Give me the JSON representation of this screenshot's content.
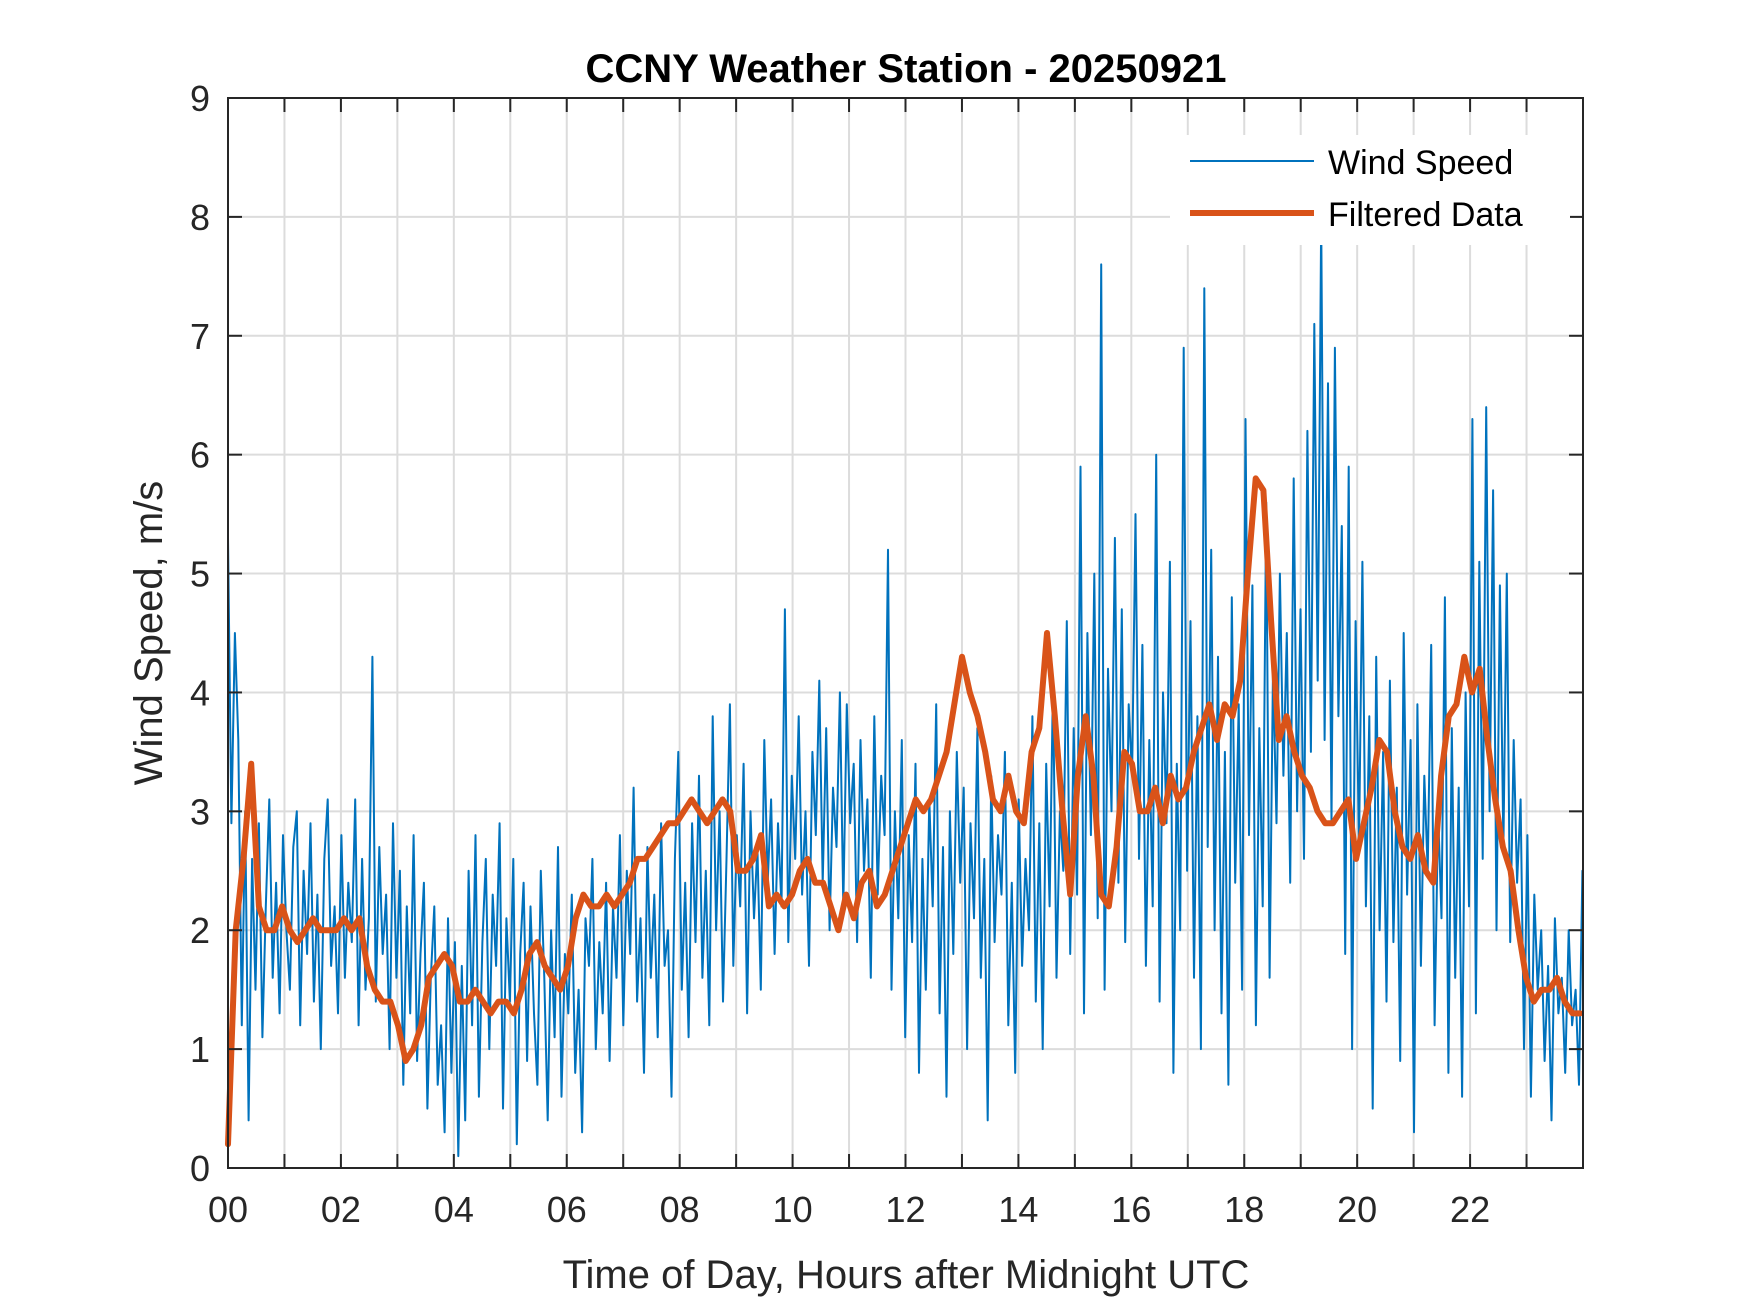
{
  "chart_data": {
    "type": "line",
    "title": "CCNY Weather Station - 20250921",
    "xlabel": "Time of Day, Hours after Midnight UTC",
    "ylabel": "Wind Speed, m/s",
    "xlim": [
      0,
      24
    ],
    "ylim": [
      0,
      9
    ],
    "xticks": [
      0,
      2,
      4,
      6,
      8,
      10,
      12,
      14,
      16,
      18,
      20,
      22
    ],
    "xtick_labels": [
      "00",
      "02",
      "04",
      "06",
      "08",
      "10",
      "12",
      "14",
      "16",
      "18",
      "20",
      "22"
    ],
    "yticks": [
      0,
      1,
      2,
      3,
      4,
      5,
      6,
      7,
      8,
      9
    ],
    "ytick_labels": [
      "0",
      "1",
      "2",
      "3",
      "4",
      "5",
      "6",
      "7",
      "8",
      "9"
    ],
    "minor_xgrid_step_hours": 1,
    "grid": true,
    "legend": {
      "location": "top-right",
      "entries": [
        "Wind Speed",
        "Filtered Data"
      ]
    },
    "series": [
      {
        "name": "Wind Speed",
        "color": "#0072BD",
        "x_step_hours": 0.05,
        "x_start": 0,
        "values": [
          5.3,
          2.9,
          4.5,
          3.6,
          1.2,
          3.0,
          0.4,
          2.6,
          1.5,
          2.9,
          1.1,
          2.2,
          3.1,
          1.6,
          2.4,
          1.3,
          2.8,
          2.0,
          1.5,
          2.7,
          3.0,
          1.2,
          2.5,
          1.8,
          2.9,
          1.4,
          2.3,
          1.0,
          2.6,
          3.1,
          1.7,
          2.2,
          1.3,
          2.8,
          1.6,
          2.4,
          1.9,
          3.1,
          1.2,
          2.6,
          1.5,
          2.1,
          4.3,
          1.4,
          2.7,
          1.8,
          2.3,
          1.0,
          2.9,
          1.6,
          2.5,
          0.7,
          2.2,
          1.3,
          2.8,
          0.9,
          1.8,
          2.4,
          0.5,
          1.6,
          2.2,
          0.7,
          1.2,
          0.3,
          2.1,
          0.8,
          1.9,
          0.1,
          1.7,
          0.4,
          2.5,
          1.2,
          2.8,
          0.6,
          1.9,
          2.6,
          1.0,
          2.3,
          1.7,
          2.9,
          0.5,
          2.1,
          1.4,
          2.6,
          0.2,
          1.8,
          2.4,
          0.9,
          2.2,
          1.3,
          0.7,
          2.5,
          1.6,
          0.4,
          2.0,
          1.1,
          2.7,
          0.6,
          1.8,
          1.3,
          2.3,
          0.8,
          1.5,
          0.3,
          2.1,
          1.7,
          2.6,
          1.0,
          1.9,
          1.3,
          2.4,
          0.9,
          2.2,
          1.6,
          2.8,
          1.2,
          2.5,
          1.8,
          3.2,
          1.4,
          2.1,
          0.8,
          2.7,
          1.6,
          2.3,
          1.1,
          2.9,
          1.7,
          2.0,
          0.6,
          2.6,
          3.5,
          1.5,
          2.4,
          1.1,
          2.9,
          1.9,
          3.3,
          1.6,
          2.5,
          1.2,
          3.8,
          2.0,
          3.0,
          1.4,
          2.6,
          3.9,
          1.7,
          2.8,
          2.2,
          3.4,
          1.3,
          3.0,
          2.1,
          2.7,
          1.5,
          3.6,
          2.4,
          3.1,
          1.8,
          2.9,
          2.2,
          4.7,
          1.9,
          3.3,
          2.6,
          3.8,
          2.3,
          3.0,
          1.7,
          3.5,
          2.8,
          4.1,
          2.4,
          3.7,
          2.0,
          3.2,
          2.7,
          4.0,
          2.2,
          3.9,
          2.9,
          3.4,
          1.9,
          3.6,
          2.5,
          3.1,
          1.6,
          3.8,
          2.3,
          3.3,
          2.8,
          5.2,
          1.5,
          3.0,
          2.1,
          3.6,
          1.1,
          2.8,
          1.9,
          3.4,
          0.8,
          2.6,
          1.5,
          3.1,
          2.2,
          3.9,
          1.3,
          2.7,
          0.6,
          3.0,
          1.8,
          3.5,
          2.4,
          3.2,
          1.0,
          2.9,
          2.1,
          3.7,
          1.6,
          2.6,
          0.4,
          3.3,
          1.9,
          2.8,
          2.3,
          3.5,
          1.2,
          2.4,
          0.8,
          3.1,
          1.7,
          2.6,
          2.0,
          3.8,
          1.4,
          2.9,
          1.0,
          3.4,
          2.2,
          4.1,
          1.6,
          3.0,
          2.5,
          4.6,
          1.8,
          3.7,
          2.3,
          5.9,
          1.3,
          4.5,
          2.8,
          5.0,
          2.1,
          7.6,
          1.5,
          4.2,
          3.0,
          5.3,
          2.4,
          4.7,
          1.9,
          3.9,
          3.3,
          5.5,
          2.6,
          4.4,
          1.7,
          3.6,
          2.2,
          6.0,
          1.4,
          4.0,
          2.9,
          5.1,
          0.8,
          3.4,
          2.0,
          6.9,
          2.5,
          4.6,
          1.6,
          3.8,
          1.0,
          7.4,
          2.7,
          5.2,
          2.0,
          4.3,
          1.3,
          3.5,
          0.7,
          4.8,
          2.4,
          3.9,
          1.5,
          6.3,
          2.8,
          4.9,
          1.2,
          3.7,
          2.2,
          5.6,
          1.6,
          4.2,
          2.9,
          5.0,
          3.3,
          4.5,
          2.4,
          5.8,
          3.0,
          4.7,
          2.6,
          6.2,
          3.5,
          7.1,
          4.1,
          8.0,
          3.6,
          6.6,
          2.9,
          6.9,
          3.8,
          5.4,
          1.8,
          5.9,
          1.0,
          4.6,
          2.7,
          5.1,
          2.2,
          3.8,
          0.5,
          4.3,
          2.0,
          3.5,
          1.4,
          4.1,
          1.9,
          3.2,
          0.9,
          4.5,
          2.3,
          3.6,
          0.3,
          3.9,
          1.7,
          3.3,
          2.5,
          4.4,
          1.2,
          3.0,
          2.1,
          4.8,
          0.8,
          3.7,
          1.6,
          3.2,
          0.6,
          4.0,
          2.2,
          6.3,
          1.3,
          5.1,
          2.6,
          6.4,
          3.0,
          5.7,
          2.0,
          4.9,
          2.7,
          5.0,
          1.9,
          3.6,
          2.4,
          3.1,
          1.0,
          2.8,
          0.6,
          2.3,
          1.5,
          2.0,
          0.9,
          1.7,
          0.4,
          2.1,
          1.3,
          1.6,
          0.8,
          2.0,
          1.2,
          1.5,
          0.7,
          2.5
        ]
      },
      {
        "name": "Filtered Data",
        "color": "#D95319",
        "x_step_hours": 0.25,
        "x_start": 0,
        "values": [
          0.2,
          2.0,
          2.6,
          3.4,
          2.2,
          2.0,
          2.0,
          2.2,
          2.0,
          1.9,
          2.0,
          2.1,
          2.0,
          2.0,
          2.0,
          2.1,
          2.0,
          2.1,
          1.7,
          1.5,
          1.4,
          1.4,
          1.2,
          0.9,
          1.0,
          1.2,
          1.6,
          1.7,
          1.8,
          1.7,
          1.4,
          1.4,
          1.5,
          1.4,
          1.3,
          1.4,
          1.4,
          1.3,
          1.5,
          1.8,
          1.9,
          1.7,
          1.6,
          1.5,
          1.7,
          2.1,
          2.3,
          2.2,
          2.2,
          2.3,
          2.2,
          2.3,
          2.4,
          2.6,
          2.6,
          2.7,
          2.8,
          2.9,
          2.9,
          3.0,
          3.1,
          3.0,
          2.9,
          3.0,
          3.1,
          3.0,
          2.5,
          2.5,
          2.6,
          2.8,
          2.2,
          2.3,
          2.2,
          2.3,
          2.5,
          2.6,
          2.4,
          2.4,
          2.2,
          2.0,
          2.3,
          2.1,
          2.4,
          2.5,
          2.2,
          2.3,
          2.5,
          2.7,
          2.9,
          3.1,
          3.0,
          3.1,
          3.3,
          3.5,
          3.9,
          4.3,
          4.0,
          3.8,
          3.5,
          3.1,
          3.0,
          3.3,
          3.0,
          2.9,
          3.5,
          3.7,
          4.5,
          3.8,
          3.0,
          2.3,
          3.3,
          3.8,
          3.3,
          2.3,
          2.2,
          2.7,
          3.5,
          3.4,
          3.0,
          3.0,
          3.2,
          2.9,
          3.3,
          3.1,
          3.2,
          3.5,
          3.7,
          3.9,
          3.6,
          3.9,
          3.8,
          4.1,
          5.0,
          5.8,
          5.7,
          4.6,
          3.6,
          3.8,
          3.5,
          3.3,
          3.2,
          3.0,
          2.9,
          2.9,
          3.0,
          3.1,
          2.6,
          2.9,
          3.2,
          3.6,
          3.5,
          3.0,
          2.7,
          2.6,
          2.8,
          2.5,
          2.4,
          3.3,
          3.8,
          3.9,
          4.3,
          4.0,
          4.2,
          3.6,
          3.1,
          2.7,
          2.5,
          2.0,
          1.6,
          1.4,
          1.5,
          1.5,
          1.6,
          1.4,
          1.3,
          1.3
        ]
      }
    ]
  }
}
